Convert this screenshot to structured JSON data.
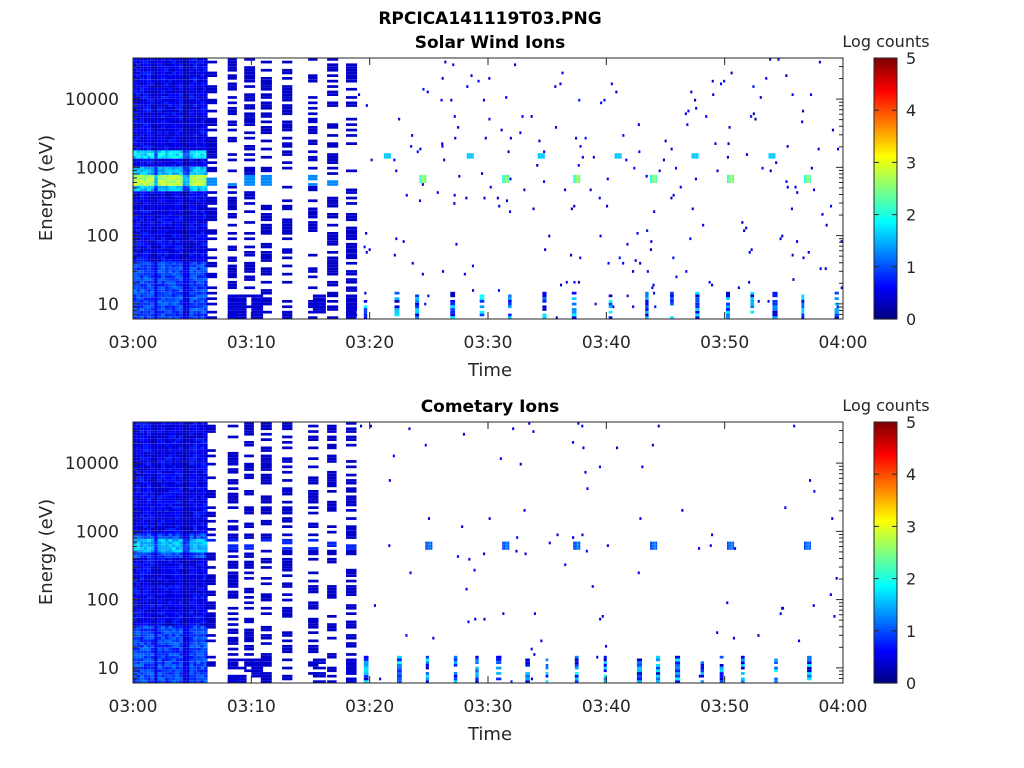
{
  "figure": {
    "title": "RPCICA141119T03.PNG"
  },
  "chart_data": [
    {
      "type": "heatmap",
      "title": "Solar Wind Ions",
      "xlabel": "Time",
      "ylabel": "Energy (eV)",
      "x_ticks": [
        "03:00",
        "03:10",
        "03:20",
        "03:30",
        "03:40",
        "03:50",
        "04:00"
      ],
      "x_range": [
        "03:00",
        "04:00"
      ],
      "y_scale": "log",
      "y_ticks": [
        "10",
        "100",
        "1000",
        "10000"
      ],
      "y_range": [
        6,
        40000
      ],
      "colorbar": {
        "label": "Log counts",
        "ticks": [
          "0",
          "1",
          "2",
          "3",
          "4",
          "5"
        ],
        "range": [
          0,
          5
        ],
        "colormap": "jet"
      },
      "features": {
        "dense_period": [
          "03:00",
          "03:06"
        ],
        "sparse_period": [
          "03:06",
          "03:19"
        ],
        "burst_period": [
          "03:19",
          "04:00"
        ],
        "main_band_eV": 650,
        "secondary_band_eV": 1500,
        "peak_burst_times_min": [
          24.5,
          31.5,
          37.5,
          44,
          50.5,
          57
        ],
        "burst_level_log_counts": 2.8
      }
    },
    {
      "type": "heatmap",
      "title": "Cometary Ions",
      "xlabel": "Time",
      "ylabel": "Energy (eV)",
      "x_ticks": [
        "03:00",
        "03:10",
        "03:20",
        "03:30",
        "03:40",
        "03:50",
        "04:00"
      ],
      "x_range": [
        "03:00",
        "04:00"
      ],
      "y_scale": "log",
      "y_ticks": [
        "10",
        "100",
        "1000",
        "10000"
      ],
      "y_range": [
        6,
        40000
      ],
      "colorbar": {
        "label": "Log counts",
        "ticks": [
          "0",
          "1",
          "2",
          "3",
          "4",
          "5"
        ],
        "range": [
          0,
          5
        ],
        "colormap": "jet"
      },
      "features": {
        "dense_period": [
          "03:00",
          "03:06"
        ],
        "sparse_period": [
          "03:06",
          "03:19"
        ],
        "burst_period": [
          "03:19",
          "04:00"
        ],
        "main_band_eV": 620,
        "peak_burst_times_min": [
          25,
          31.5,
          37.5,
          44,
          50.5,
          57
        ],
        "burst_level_log_counts": 1.3
      }
    }
  ]
}
